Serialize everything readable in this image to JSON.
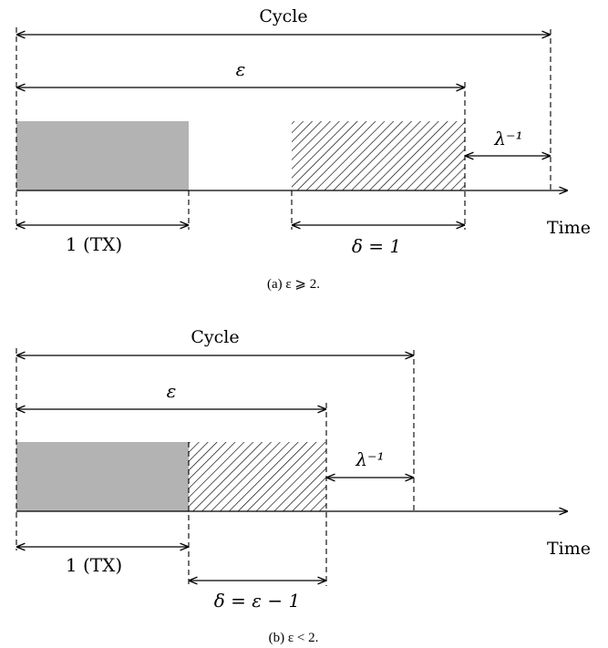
{
  "panel_a": {
    "cycle_label": "Cycle",
    "epsilon_label": "ε",
    "lambda_label": "λ⁻¹",
    "tx_label": "1 (TX)",
    "delta_label": "δ = 1",
    "time_label": "Time",
    "caption": "(a) ε ⩾ 2."
  },
  "panel_b": {
    "cycle_label": "Cycle",
    "epsilon_label": "ε",
    "lambda_label": "λ⁻¹",
    "tx_label": "1 (TX)",
    "delta_label": "δ = ε − 1",
    "time_label": "Time",
    "caption": "(b) ε < 2."
  },
  "colors": {
    "tx_fill": "#b3b3b3",
    "hatch": "#000000"
  }
}
